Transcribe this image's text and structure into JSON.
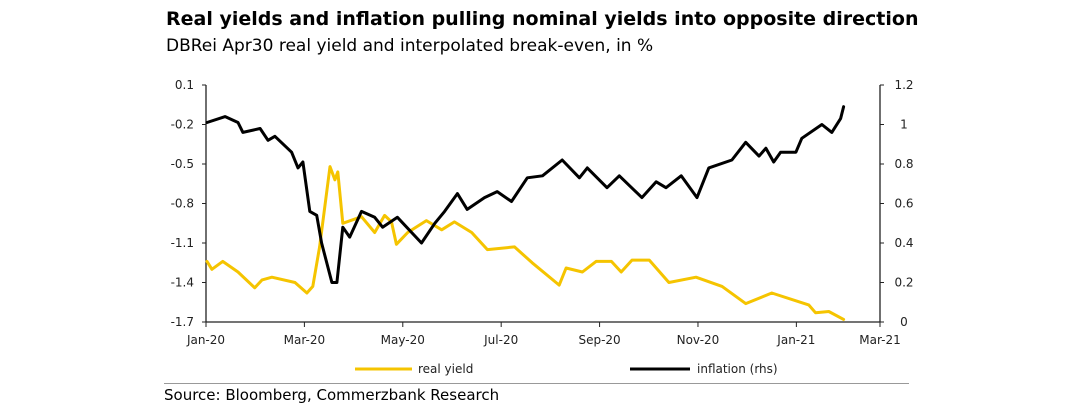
{
  "chart_data": {
    "type": "line",
    "title": "Real yields and inflation pulling nominal yields into opposite direction",
    "subtitle": "DBRei Apr30 real yield and interpolated break-even, in %",
    "source": "Source: Bloomberg, Commerzbank Research",
    "x_unit": "months since Jan-20",
    "xlim": [
      0,
      13.7
    ],
    "x_ticks": [
      {
        "label": "Jan-20",
        "value": 0
      },
      {
        "label": "Mar-20",
        "value": 2
      },
      {
        "label": "May-20",
        "value": 4
      },
      {
        "label": "Jul-20",
        "value": 6
      },
      {
        "label": "Sep-20",
        "value": 8
      },
      {
        "label": "Nov-20",
        "value": 10
      },
      {
        "label": "Jan-21",
        "value": 12
      },
      {
        "label": "Mar-21",
        "value": 13.7
      }
    ],
    "y_left": {
      "lim": [
        -1.7,
        0.1
      ],
      "ticks": [
        "0.1",
        "-0.2",
        "-0.5",
        "-0.8",
        "-1.1",
        "-1.4",
        "-1.7"
      ]
    },
    "y_right": {
      "lim": [
        0,
        1.2
      ],
      "ticks": [
        "1.2",
        "1",
        "0.8",
        "0.6",
        "0.4",
        "0.2",
        "0"
      ]
    },
    "grid": false,
    "legend_position": "bottom",
    "series": [
      {
        "name": "real yield",
        "axis": "left",
        "color": "#F5C400",
        "x": [
          0.02,
          0.12,
          0.34,
          0.65,
          0.99,
          1.14,
          1.34,
          1.81,
          2.05,
          2.17,
          2.31,
          2.52,
          2.62,
          2.68,
          2.78,
          3.16,
          3.43,
          3.63,
          3.77,
          3.87,
          4.1,
          4.48,
          4.79,
          5.05,
          5.4,
          5.72,
          6.27,
          6.63,
          7.18,
          7.32,
          7.65,
          7.93,
          8.24,
          8.44,
          8.66,
          9.01,
          9.41,
          9.96,
          10.49,
          10.97,
          11.5,
          12.25,
          12.39,
          12.66,
          12.96
        ],
        "y": [
          -1.24,
          -1.3,
          -1.24,
          -1.32,
          -1.44,
          -1.38,
          -1.36,
          -1.4,
          -1.48,
          -1.43,
          -1.13,
          -0.52,
          -0.62,
          -0.56,
          -0.95,
          -0.9,
          -1.02,
          -0.89,
          -0.94,
          -1.11,
          -1.02,
          -0.93,
          -1.0,
          -0.94,
          -1.02,
          -1.15,
          -1.13,
          -1.25,
          -1.42,
          -1.29,
          -1.32,
          -1.24,
          -1.24,
          -1.32,
          -1.23,
          -1.23,
          -1.4,
          -1.36,
          -1.43,
          -1.56,
          -1.48,
          -1.57,
          -1.63,
          -1.62,
          -1.68
        ]
      },
      {
        "name": "inflation (rhs)",
        "axis": "right",
        "color": "#000000",
        "x": [
          0.02,
          0.39,
          0.65,
          0.75,
          1.1,
          1.26,
          1.4,
          1.74,
          1.87,
          1.97,
          2.11,
          2.25,
          2.35,
          2.56,
          2.66,
          2.78,
          2.92,
          3.16,
          3.43,
          3.59,
          3.89,
          4.38,
          4.65,
          4.85,
          5.11,
          5.31,
          5.66,
          5.92,
          6.21,
          6.53,
          6.84,
          7.24,
          7.59,
          7.75,
          8.15,
          8.4,
          8.86,
          9.15,
          9.35,
          9.66,
          9.98,
          10.22,
          10.69,
          10.97,
          11.24,
          11.38,
          11.54,
          11.68,
          11.99,
          12.11,
          12.52,
          12.72,
          12.9,
          12.96
        ],
        "y": [
          1.01,
          1.04,
          1.01,
          0.96,
          0.98,
          0.92,
          0.94,
          0.86,
          0.78,
          0.81,
          0.56,
          0.54,
          0.4,
          0.2,
          0.2,
          0.48,
          0.43,
          0.56,
          0.53,
          0.48,
          0.53,
          0.4,
          0.5,
          0.56,
          0.65,
          0.57,
          0.63,
          0.66,
          0.61,
          0.73,
          0.74,
          0.82,
          0.73,
          0.78,
          0.68,
          0.74,
          0.63,
          0.71,
          0.68,
          0.74,
          0.63,
          0.78,
          0.82,
          0.91,
          0.84,
          0.88,
          0.81,
          0.86,
          0.86,
          0.93,
          1.0,
          0.96,
          1.03,
          1.09
        ]
      }
    ]
  }
}
